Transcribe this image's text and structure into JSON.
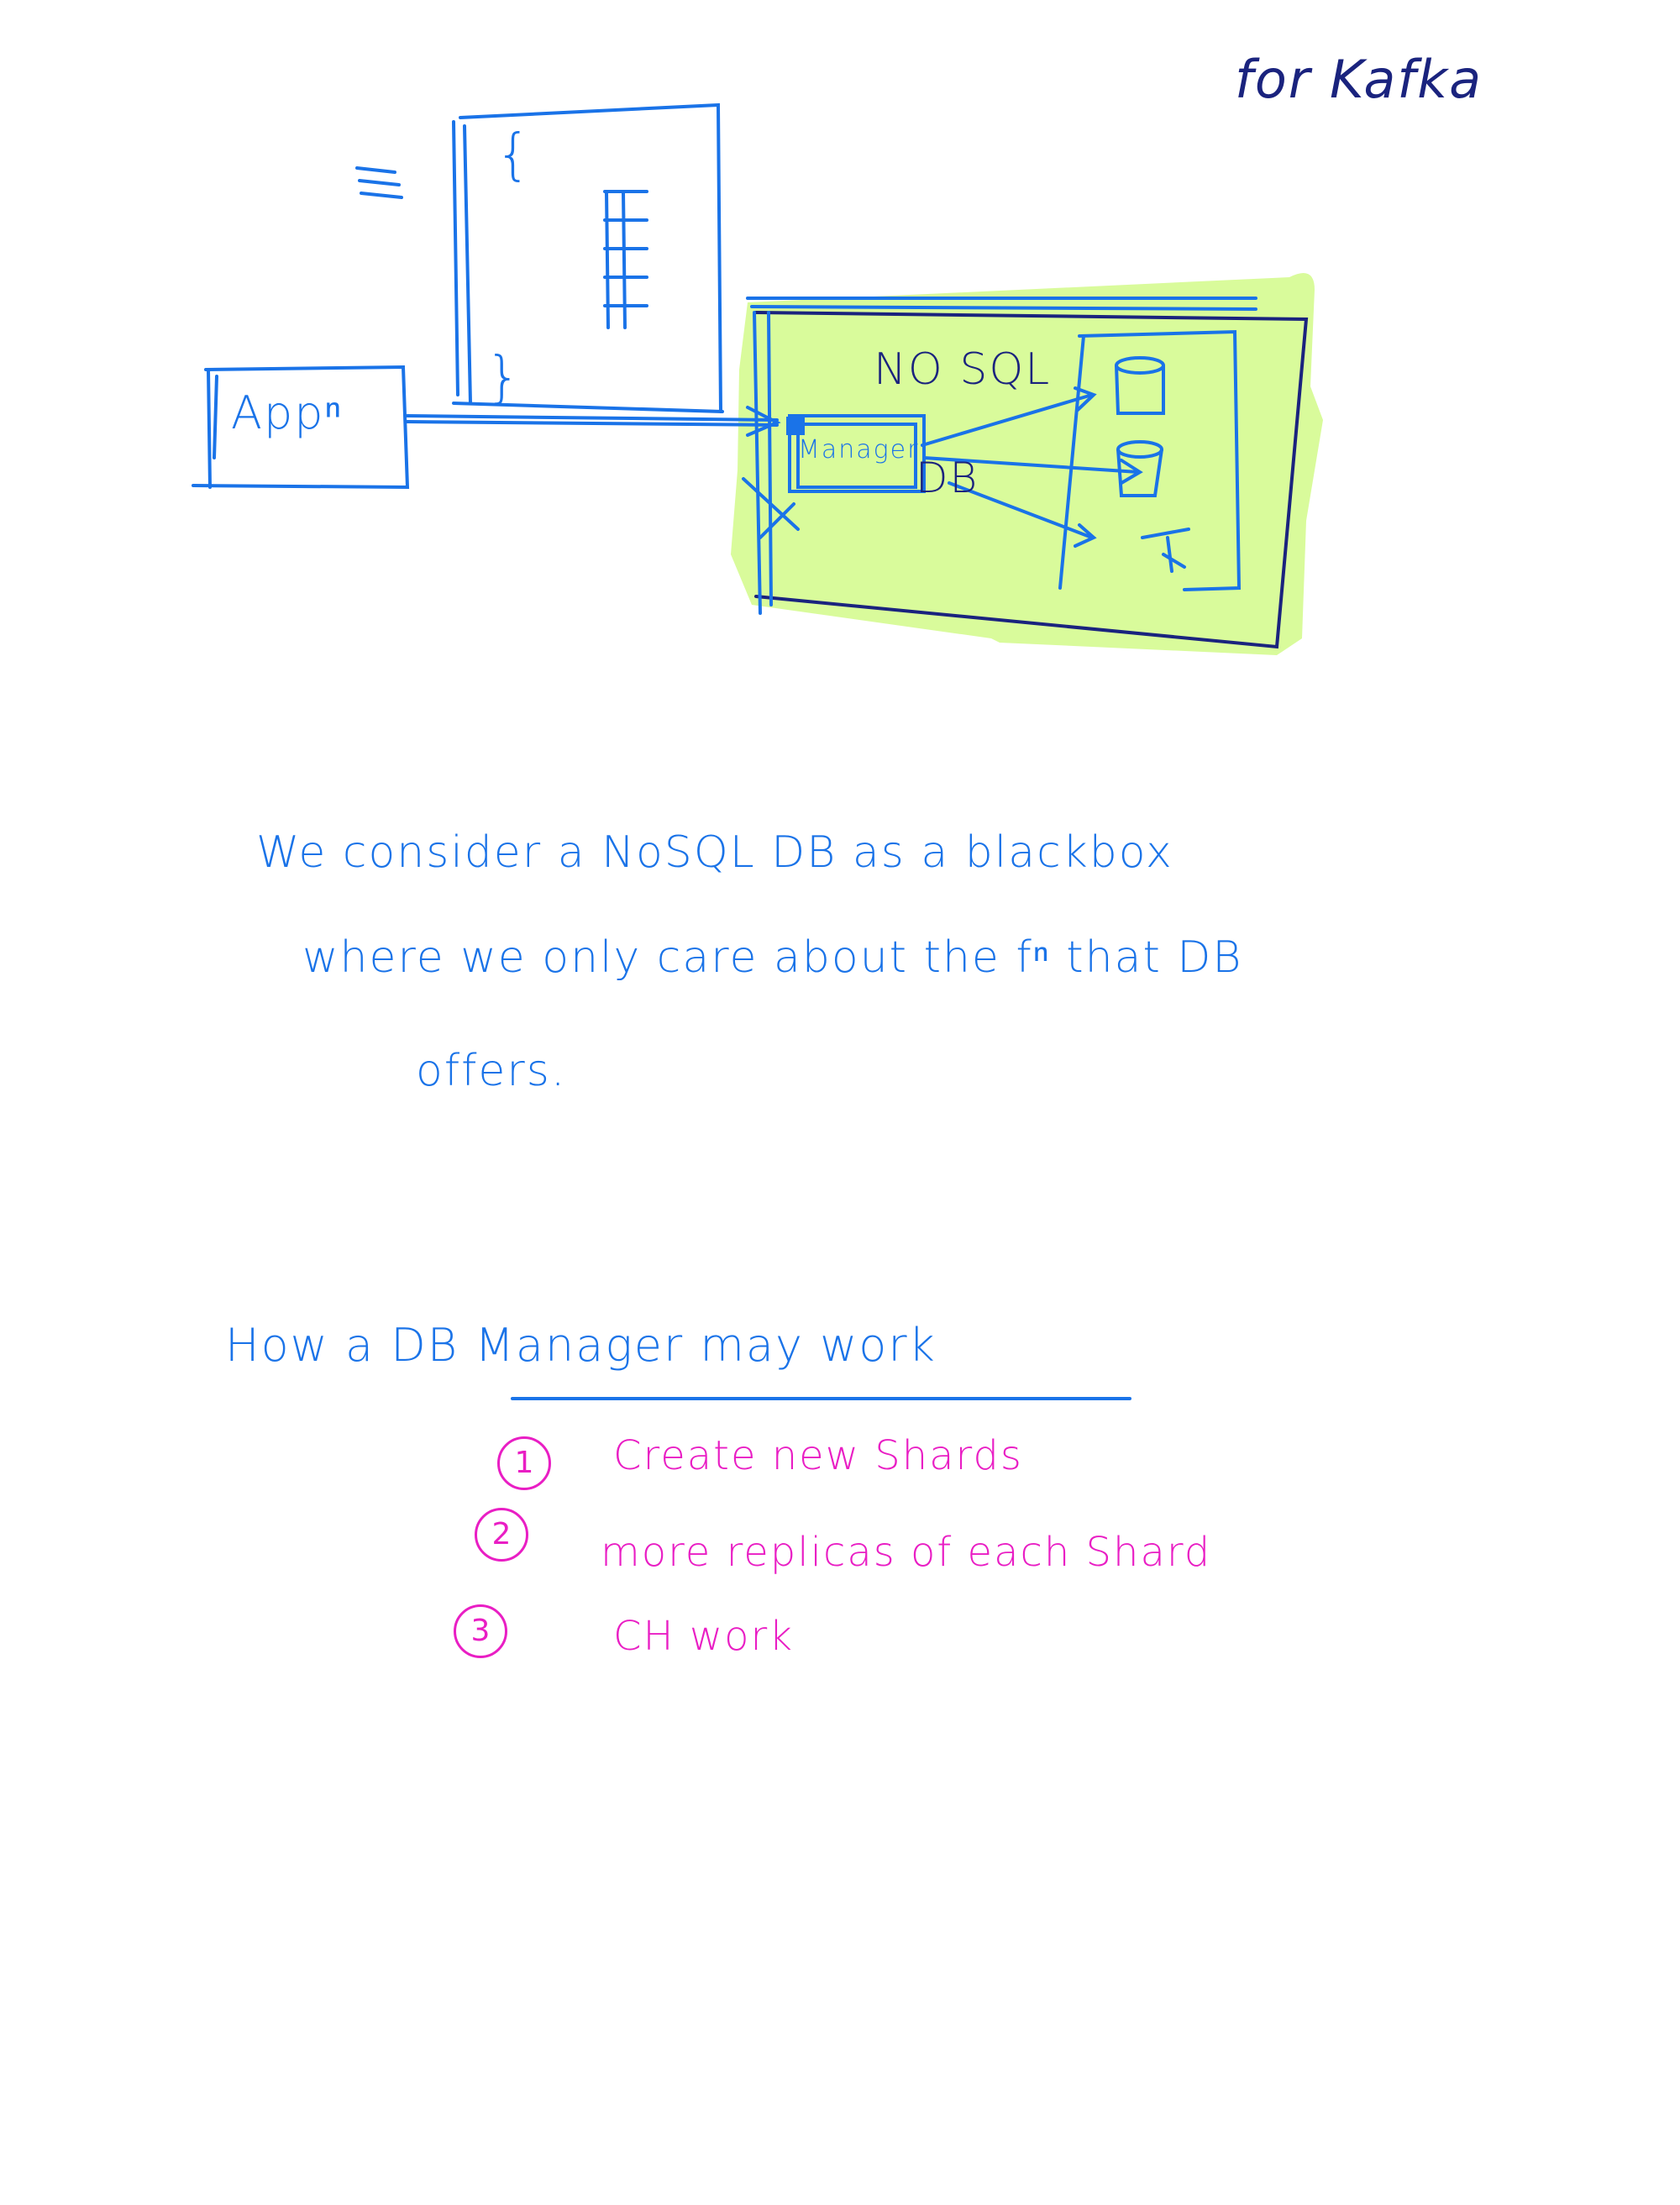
{
  "diagram": {
    "top_note": "for Kafka",
    "app_label": "Appⁿ",
    "doc_brace_open": "{",
    "doc_brace_close": "}",
    "nosql_label": "NO SQL",
    "manager_label": "Manager",
    "db_label": "DB"
  },
  "paragraph": {
    "line1": "We consider  a NoSQL   DB   as  a   blackbox",
    "line2": "where   we   only   care   about   the   fⁿ   that  DB",
    "line3": "offers."
  },
  "list": {
    "heading": "How   a   DB   Manager   may     work",
    "items": [
      {
        "number": "1",
        "text": "Create  new  Shards"
      },
      {
        "number": "2",
        "text": "more   replicas   of   each   Shard"
      },
      {
        "number": "3",
        "text": "CH   work"
      }
    ]
  },
  "colors": {
    "ink_blue": "#1a73e8",
    "ink_navy": "#1a237e",
    "ink_pink": "#e91ec4",
    "highlight_green": "#d9fb9b"
  }
}
